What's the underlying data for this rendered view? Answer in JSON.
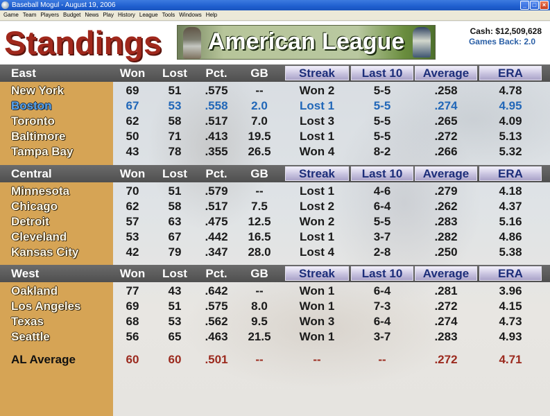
{
  "window": {
    "title": "Baseball Mogul - August 19, 2006",
    "minimize": "_",
    "maximize": "□",
    "close": "×"
  },
  "menu": [
    "Game",
    "Team",
    "Players",
    "Budget",
    "News",
    "Play",
    "History",
    "League",
    "Tools",
    "Windows",
    "Help"
  ],
  "header": {
    "title": "Standings",
    "league": "American League",
    "cash": "Cash: $12,509,628",
    "games_back": "Games Back: 2.0"
  },
  "columns": {
    "won": "Won",
    "lost": "Lost",
    "pct": "Pct.",
    "gb": "GB",
    "streak": "Streak",
    "last10": "Last 10",
    "average": "Average",
    "era": "ERA"
  },
  "divisions": [
    {
      "name": "East",
      "teams": [
        {
          "team": "New York",
          "won": "69",
          "lost": "51",
          "pct": ".575",
          "gb": "--",
          "streak": "Won 2",
          "last10": "5-5",
          "avg": ".258",
          "era": "4.78"
        },
        {
          "team": "Boston",
          "won": "67",
          "lost": "53",
          "pct": ".558",
          "gb": "2.0",
          "streak": "Lost 1",
          "last10": "5-5",
          "avg": ".274",
          "era": "4.95"
        },
        {
          "team": "Toronto",
          "won": "62",
          "lost": "58",
          "pct": ".517",
          "gb": "7.0",
          "streak": "Lost 3",
          "last10": "5-5",
          "avg": ".265",
          "era": "4.09"
        },
        {
          "team": "Baltimore",
          "won": "50",
          "lost": "71",
          "pct": ".413",
          "gb": "19.5",
          "streak": "Lost 1",
          "last10": "5-5",
          "avg": ".272",
          "era": "5.13"
        },
        {
          "team": "Tampa Bay",
          "won": "43",
          "lost": "78",
          "pct": ".355",
          "gb": "26.5",
          "streak": "Won 4",
          "last10": "8-2",
          "avg": ".266",
          "era": "5.32"
        }
      ]
    },
    {
      "name": "Central",
      "teams": [
        {
          "team": "Minnesota",
          "won": "70",
          "lost": "51",
          "pct": ".579",
          "gb": "--",
          "streak": "Lost 1",
          "last10": "4-6",
          "avg": ".279",
          "era": "4.18"
        },
        {
          "team": "Chicago",
          "won": "62",
          "lost": "58",
          "pct": ".517",
          "gb": "7.5",
          "streak": "Lost 2",
          "last10": "6-4",
          "avg": ".262",
          "era": "4.37"
        },
        {
          "team": "Detroit",
          "won": "57",
          "lost": "63",
          "pct": ".475",
          "gb": "12.5",
          "streak": "Won 2",
          "last10": "5-5",
          "avg": ".283",
          "era": "5.16"
        },
        {
          "team": "Cleveland",
          "won": "53",
          "lost": "67",
          "pct": ".442",
          "gb": "16.5",
          "streak": "Lost 1",
          "last10": "3-7",
          "avg": ".282",
          "era": "4.86"
        },
        {
          "team": "Kansas City",
          "won": "42",
          "lost": "79",
          "pct": ".347",
          "gb": "28.0",
          "streak": "Lost 4",
          "last10": "2-8",
          "avg": ".250",
          "era": "5.38"
        }
      ]
    },
    {
      "name": "West",
      "teams": [
        {
          "team": "Oakland",
          "won": "77",
          "lost": "43",
          "pct": ".642",
          "gb": "--",
          "streak": "Won 1",
          "last10": "6-4",
          "avg": ".281",
          "era": "3.96"
        },
        {
          "team": "Los Angeles",
          "won": "69",
          "lost": "51",
          "pct": ".575",
          "gb": "8.0",
          "streak": "Won 1",
          "last10": "7-3",
          "avg": ".272",
          "era": "4.15"
        },
        {
          "team": "Texas",
          "won": "68",
          "lost": "53",
          "pct": ".562",
          "gb": "9.5",
          "streak": "Won 3",
          "last10": "6-4",
          "avg": ".274",
          "era": "4.73"
        },
        {
          "team": "Seattle",
          "won": "56",
          "lost": "65",
          "pct": ".463",
          "gb": "21.5",
          "streak": "Won 1",
          "last10": "3-7",
          "avg": ".283",
          "era": "4.93"
        }
      ]
    }
  ],
  "league_average": {
    "team": "AL Average",
    "won": "60",
    "lost": "60",
    "pct": ".501",
    "gb": "--",
    "streak": "--",
    "last10": "--",
    "avg": ".272",
    "era": "4.71"
  },
  "highlight_team": "Boston",
  "colors": {
    "title_red": "#a0281c",
    "highlight_blue": "#2167b8",
    "average_red": "#9b2a1e",
    "sidebar_gold": "#d6a455",
    "header_gray": "#5a5a5a"
  }
}
